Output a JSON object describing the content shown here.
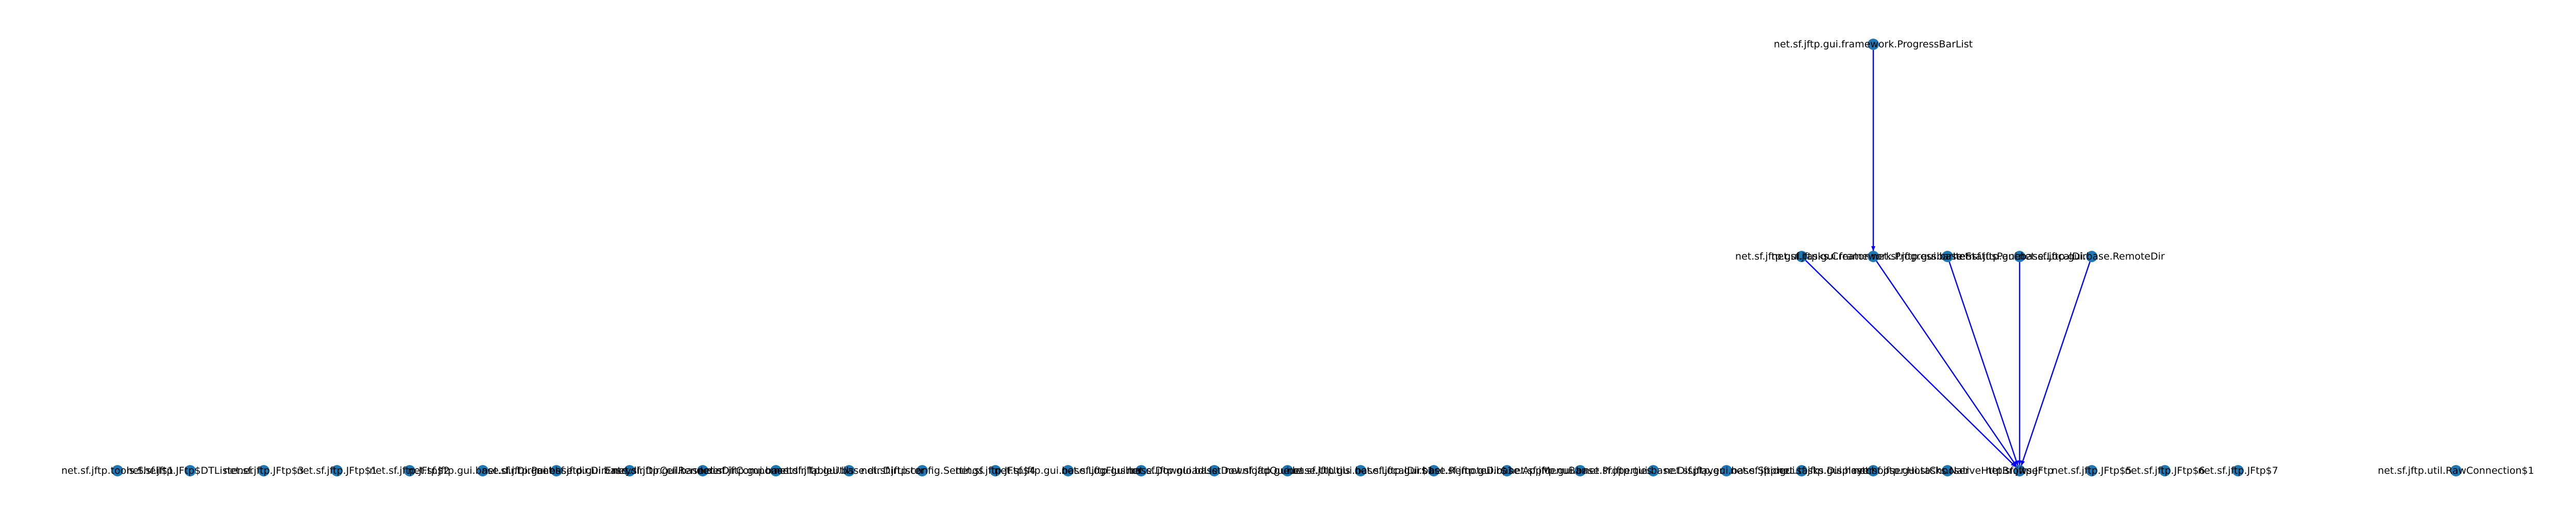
{
  "graph": {
    "node_color": "#1f77b4",
    "edge_color": "#0000ff",
    "nodes": [
      {
        "id": "progressbarlist",
        "label": "net.sf.jftp.gui.framework.ProgressBarList"
      },
      {
        "id": "m1",
        "label": "net.sf.jftp.gui.tasks.Creator"
      },
      {
        "id": "m2",
        "label": "net.sf.jftp.gui.framework.ProgressbarItem"
      },
      {
        "id": "m3",
        "label": "net.sf.jftp.gui.base.StatusPanel"
      },
      {
        "id": "m4",
        "label": "net.sf.jftp.gui.base.LocalDir"
      },
      {
        "id": "m5",
        "label": "net.sf.jftp.gui.base.RemoteDir"
      },
      {
        "id": "b1",
        "label": "net.sf.jftp.tools.Shell$1"
      },
      {
        "id": "b2",
        "label": "net.sf.jftp.JFtp$DTListener"
      },
      {
        "id": "b3",
        "label": "net.sf.jftp.JFtp$3"
      },
      {
        "id": "b4",
        "label": "net.sf.jftp.JFtp$1"
      },
      {
        "id": "b5",
        "label": "net.sf.jftp.JFtp$2"
      },
      {
        "id": "b6",
        "label": "net.sf.jftp.gui.base.dir.DirPanel"
      },
      {
        "id": "b7",
        "label": "net.sf.jftp.gui.base.dir.DirEntry"
      },
      {
        "id": "b8",
        "label": "net.sf.jftp.gui.base.dir.DirCellRenderer"
      },
      {
        "id": "b9",
        "label": "net.sf.jftp.gui.base.dir.DirComponent"
      },
      {
        "id": "b10",
        "label": "net.sf.jftp.gui.base.dir.TableUtils"
      },
      {
        "id": "b11",
        "label": "net.sf.jftp.gui.base.dir.DirLister"
      },
      {
        "id": "b12",
        "label": "net.sf.jftp.config.Settings"
      },
      {
        "id": "b13",
        "label": "net.sf.jftp.JFtp$4"
      },
      {
        "id": "b14",
        "label": "net.sf.jftp.gui.base.LogFlusher"
      },
      {
        "id": "b15",
        "label": "net.sf.jftp.gui.base.DownloadList"
      },
      {
        "id": "b16",
        "label": "net.sf.jftp.gui.base.DownloadQueue"
      },
      {
        "id": "b17",
        "label": "net.sf.jftp.gui.base.UIUtils"
      },
      {
        "id": "b18",
        "label": "net.sf.jftp.gui.base.LocalDir$1"
      },
      {
        "id": "b19",
        "label": "net.sf.jftp.gui.base.RemoteDir$1"
      },
      {
        "id": "b20",
        "label": "net.sf.jftp.gui.base.AppMenuBar"
      },
      {
        "id": "b21",
        "label": "net.sf.jftp.gui.base.Properties"
      },
      {
        "id": "b22",
        "label": "net.sf.jftp.gui.base.Displayer"
      },
      {
        "id": "b23",
        "label": "net.sf.jftp.gui.base.Spider"
      },
      {
        "id": "b24",
        "label": "net.sf.jftp.gui.tasks.Displayer"
      },
      {
        "id": "b25",
        "label": "net.sf.jftp.gui.hostchooser.HostChooser"
      },
      {
        "id": "b26",
        "label": "net.sf.jftp.gui.tasks.NativeHttpBrowser"
      },
      {
        "id": "b27",
        "label": "net.sf.jftp.JFtp"
      },
      {
        "id": "b28",
        "label": "net.sf.jftp.JFtp$5"
      },
      {
        "id": "b29",
        "label": "net.sf.jftp.JFtp$6"
      },
      {
        "id": "b30",
        "label": "net.sf.jftp.JFtp$7"
      },
      {
        "id": "b31",
        "label": "net.sf.jftp.util.RawConnection$1"
      }
    ],
    "edges": [
      {
        "from": "progressbarlist",
        "to": "m2"
      },
      {
        "from": "m1",
        "to": "b27"
      },
      {
        "from": "m2",
        "to": "b27"
      },
      {
        "from": "m3",
        "to": "b27"
      },
      {
        "from": "m4",
        "to": "b27"
      },
      {
        "from": "m5",
        "to": "b27"
      }
    ]
  }
}
